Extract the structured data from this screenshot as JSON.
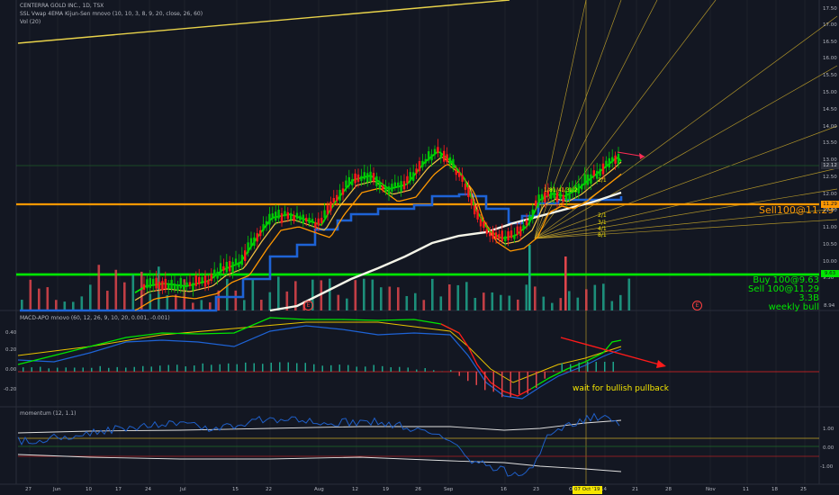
{
  "header": {
    "symbol": "CENTERRA GOLD INC., 1D, TSX",
    "indicator": "SSL Vwap 4EMA Kijun-Sen mnovo (10, 10, 3, 8, 9, 20, close, 26, 60)",
    "volume": "Vol (20)"
  },
  "colors": {
    "background": "#131722",
    "bull": "#00c805",
    "bear": "#ff1a1a",
    "orange": "#ff9800",
    "green_line": "#00e600",
    "blue": "#1e63d6",
    "white": "#f5f5e8",
    "yellow": "#e8d24a",
    "arrow": "#ff2d55"
  },
  "annotations": {
    "sell_line": "Sell100@11.29",
    "buy": "Buy 100@9.63",
    "sell": "Sell 100@11.29",
    "volume_note": "3.3B",
    "weekly": "weekly bull",
    "macd_note": "wait for bullish pullback",
    "event_marker": "E",
    "gann_labels": [
      "1/8",
      "1/4",
      "1/3",
      "1/2",
      "1/1",
      "2/1",
      "3/1",
      "4/1",
      "8/1"
    ]
  },
  "price_axis": {
    "ticks": [
      "17.50",
      "17.00",
      "16.50",
      "16.00",
      "15.50",
      "15.00",
      "14.50",
      "14.00",
      "13.50",
      "13.00",
      "12.50",
      "12.00",
      "11.50",
      "11.00",
      "10.50",
      "10.00",
      "9.50"
    ],
    "last_price": "12.12",
    "level_upper": "11.29",
    "level_lower": "9.63",
    "bottom_tick": "8.94"
  },
  "macd": {
    "title": "MACD-APO mnovo (60, 12, 26, 9, 10, 20, 0.001, -0.001)",
    "ticks": [
      "0.40",
      "0.20",
      "0.00",
      "-0.20"
    ]
  },
  "momentum": {
    "title": "momentum (12, 1.1)",
    "ticks": [
      "1.00",
      "0.00",
      "-1.00"
    ]
  },
  "time_axis": {
    "labels": [
      "27",
      "Jun",
      "10",
      "17",
      "24",
      "Jul",
      "15",
      "22",
      "Aug",
      "12",
      "19",
      "26",
      "Sep",
      "16",
      "23",
      "Oct",
      "14",
      "21",
      "28",
      "Nov",
      "11",
      "18",
      "25"
    ],
    "highlight": "07 Oct '19"
  },
  "chart_data": [
    {
      "type": "candlestick",
      "title": "CENTERRA GOLD INC., 1D, TSX",
      "ylim": [
        8.94,
        17.9
      ],
      "x": [
        "May 27",
        "Jun 3",
        "Jun 10",
        "Jun 17",
        "Jun 24",
        "Jul 2",
        "Jul 8",
        "Jul 15",
        "Jul 22",
        "Jul 29",
        "Aug 6",
        "Aug 12",
        "Aug 19",
        "Aug 26",
        "Sep 3",
        "Sep 9",
        "Sep 16",
        "Sep 23",
        "Sep 30",
        "Oct 7",
        "Oct 9"
      ],
      "close": [
        8.9,
        9.0,
        9.1,
        9.2,
        9.35,
        9.4,
        9.8,
        10.9,
        11.2,
        11.5,
        11.9,
        11.7,
        11.9,
        12.6,
        11.9,
        10.8,
        10.6,
        11.1,
        11.7,
        12.5,
        12.12
      ],
      "levels": [
        11.29,
        9.63
      ]
    },
    {
      "type": "bar",
      "title": "Vol (20)",
      "note": "3.3B"
    }
  ]
}
